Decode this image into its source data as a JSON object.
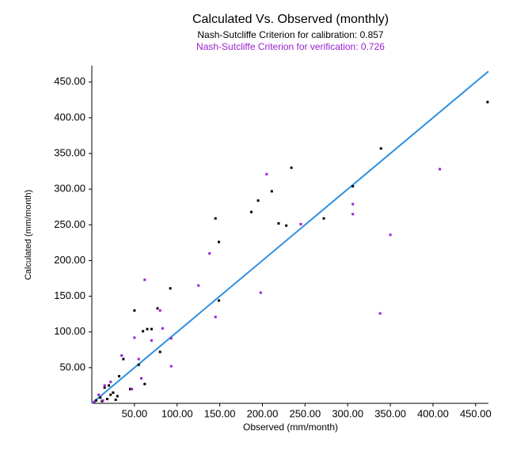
{
  "chart_data": {
    "type": "scatter",
    "title": "Calculated  Vs. Observed (monthly)",
    "subtitle": "Nash-Sutcliffe Criterion for calibration: 0.857",
    "subtitle2": "Nash-Sutcliffe Criterion for verification: 0.726",
    "x_label": "Observed (mm/month)",
    "y_label": "Calculated (mm/month)",
    "xlim": [
      0,
      465
    ],
    "ylim": [
      0,
      473
    ],
    "xticks": [
      {
        "value": 50,
        "label": "50.00"
      },
      {
        "value": 100,
        "label": "100.00"
      },
      {
        "value": 150,
        "label": "150.00"
      },
      {
        "value": 200,
        "label": "200.00"
      },
      {
        "value": 250,
        "label": "250.00"
      },
      {
        "value": 300,
        "label": "300.00"
      },
      {
        "value": 350,
        "label": "350.00"
      },
      {
        "value": 400,
        "label": "400.00"
      },
      {
        "value": 450,
        "label": "450.00"
      }
    ],
    "yticks": [
      {
        "value": 50,
        "label": "50.00"
      },
      {
        "value": 100,
        "label": "100.00"
      },
      {
        "value": 150,
        "label": "150.00"
      },
      {
        "value": 200,
        "label": "200.00"
      },
      {
        "value": 250,
        "label": "250.00"
      },
      {
        "value": 300,
        "label": "300.00"
      },
      {
        "value": 350,
        "label": "350.00"
      },
      {
        "value": 400,
        "label": "400.00"
      },
      {
        "value": 450,
        "label": "450.00"
      }
    ],
    "reference_line_color": "#2f8fe0",
    "series": [
      {
        "color": "#000000",
        "x": [
          464,
          339,
          234,
          211,
          187,
          195,
          145,
          219,
          228,
          272,
          306,
          149,
          149,
          92,
          50,
          77,
          65,
          60,
          70,
          80,
          55,
          62,
          37,
          32,
          20,
          15,
          25,
          10,
          5,
          18,
          30,
          12,
          28,
          45,
          22
        ],
        "values": [
          422,
          357,
          330,
          297,
          268,
          284,
          259,
          252,
          249,
          259,
          304,
          226,
          144,
          161,
          130,
          133,
          104,
          101,
          104,
          72,
          54,
          27,
          62,
          38,
          25,
          22,
          15,
          8,
          4,
          6,
          10,
          3,
          5,
          20,
          12
        ]
      },
      {
        "color": "#9b1fcf",
        "x": [
          408,
          350,
          338,
          306,
          306,
          245,
          205,
          198,
          145,
          138,
          125,
          93,
          93,
          83,
          80,
          70,
          62,
          50,
          55,
          58,
          47,
          35,
          22,
          15,
          8,
          3,
          13
        ],
        "values": [
          328,
          236,
          126,
          279,
          265,
          251,
          321,
          155,
          121,
          210,
          165,
          91,
          52,
          105,
          130,
          88,
          173,
          92,
          62,
          35,
          20,
          67,
          30,
          25,
          12,
          2,
          4
        ]
      }
    ]
  }
}
